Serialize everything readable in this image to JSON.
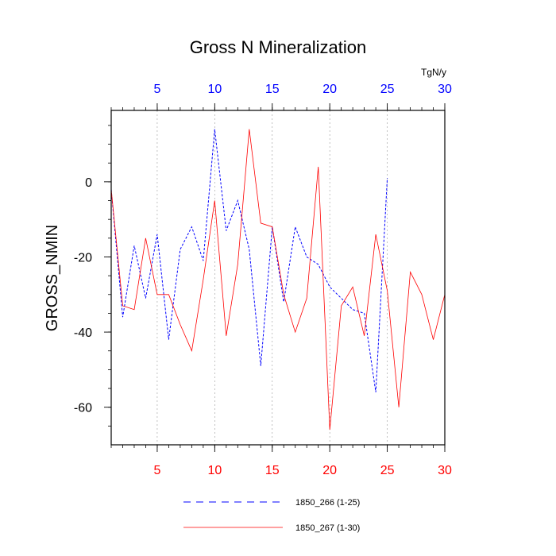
{
  "chart_data": {
    "type": "line",
    "title": "Gross N Mineralization",
    "ylabel": "GROSS_NMIN",
    "units": "TgN/y",
    "xlim": [
      1,
      30
    ],
    "ylim": [
      -70,
      19
    ],
    "x_ticks_major": [
      5,
      10,
      15,
      20,
      25,
      30
    ],
    "x_ticks_minor": [
      1,
      2,
      3,
      4,
      5,
      6,
      7,
      8,
      9,
      10,
      11,
      12,
      13,
      14,
      15,
      16,
      17,
      18,
      19,
      20,
      21,
      22,
      23,
      24,
      25,
      26,
      27,
      28,
      29,
      30
    ],
    "y_ticks_major": [
      0,
      -20,
      -40,
      -60
    ],
    "y_ticks_minor": [
      15,
      10,
      5,
      0,
      -5,
      -10,
      -15,
      -20,
      -25,
      -30,
      -35,
      -40,
      -45,
      -50,
      -55,
      -60,
      -65
    ],
    "x_tick_labels_bottom": [
      "5",
      "10",
      "15",
      "20",
      "25",
      "30"
    ],
    "x_tick_labels_top": [
      "5",
      "10",
      "15",
      "20",
      "25",
      "30"
    ],
    "y_tick_labels": [
      "0",
      "-20",
      "-40",
      "-60"
    ],
    "vertical_gridlines": [
      5,
      10,
      15,
      20,
      25
    ],
    "colors": {
      "bottom_axis_labels": "#ff0000",
      "top_axis_labels": "#0000ff"
    },
    "series": [
      {
        "name": "1850_266 (1-25)",
        "color": "#0000ff",
        "style": "dashed",
        "x": [
          1,
          2,
          3,
          4,
          5,
          6,
          7,
          8,
          9,
          10,
          11,
          12,
          13,
          14,
          15,
          16,
          17,
          18,
          19,
          20,
          21,
          22,
          23,
          24,
          25
        ],
        "values": [
          -2,
          -36,
          -17,
          -31,
          -14,
          -42,
          -18,
          -12,
          -21,
          14,
          -13,
          -5,
          -18,
          -49,
          -12,
          -32,
          -12,
          -20,
          -22,
          -28,
          -31,
          -34,
          -35,
          -56,
          1
        ]
      },
      {
        "name": "1850_267 (1-30)",
        "color": "#ff0000",
        "style": "solid",
        "x": [
          1,
          2,
          3,
          4,
          5,
          6,
          7,
          8,
          9,
          10,
          11,
          12,
          13,
          14,
          15,
          16,
          17,
          18,
          19,
          20,
          21,
          22,
          23,
          24,
          25,
          26,
          27,
          28,
          29,
          30
        ],
        "values": [
          -2,
          -33,
          -34,
          -15,
          -30,
          -30,
          -38,
          -45,
          -26,
          -5,
          -41,
          -22,
          14,
          -11,
          -12,
          -30,
          -40,
          -31,
          4,
          -66,
          -33,
          -28,
          -41,
          -14,
          -29,
          -60,
          -24,
          -30,
          -42,
          -30
        ]
      }
    ],
    "legend": {
      "placement": "bottom-center",
      "entries": [
        "1850_266 (1-25)",
        "1850_267 (1-30)"
      ]
    }
  }
}
